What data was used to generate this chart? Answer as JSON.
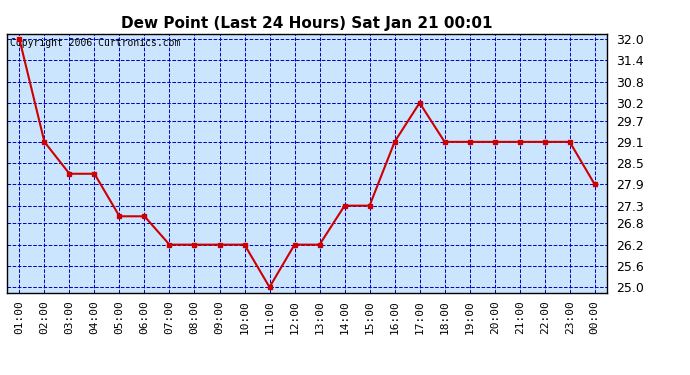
{
  "title": "Dew Point (Last 24 Hours) Sat Jan 21 00:01",
  "copyright": "Copyright 2006 Curtronics.com",
  "x_labels": [
    "01:00",
    "02:00",
    "03:00",
    "04:00",
    "05:00",
    "06:00",
    "07:00",
    "08:00",
    "09:00",
    "10:00",
    "11:00",
    "12:00",
    "13:00",
    "14:00",
    "15:00",
    "16:00",
    "17:00",
    "18:00",
    "19:00",
    "20:00",
    "21:00",
    "22:00",
    "23:00",
    "00:00"
  ],
  "y_values": [
    32.0,
    29.1,
    28.2,
    28.2,
    27.0,
    27.0,
    26.2,
    26.2,
    26.2,
    26.2,
    25.0,
    26.2,
    26.2,
    27.3,
    27.3,
    29.1,
    30.2,
    29.1,
    29.1,
    29.1,
    29.1,
    29.1,
    29.1,
    27.9
  ],
  "y_ticks": [
    25.0,
    25.6,
    26.2,
    26.8,
    27.3,
    27.9,
    28.5,
    29.1,
    29.7,
    30.2,
    30.8,
    31.4,
    32.0
  ],
  "ylim": [
    24.85,
    32.15
  ],
  "line_color": "#cc0000",
  "marker_color": "#cc0000",
  "fig_bg_color": "#ffffff",
  "plot_bg": "#cce5ff",
  "grid_color": "#0000bb",
  "title_color": "#000000",
  "title_fontsize": 11,
  "copyright_fontsize": 7,
  "tick_fontsize": 8,
  "ytick_fontsize": 9,
  "marker_size": 3,
  "line_width": 1.5
}
